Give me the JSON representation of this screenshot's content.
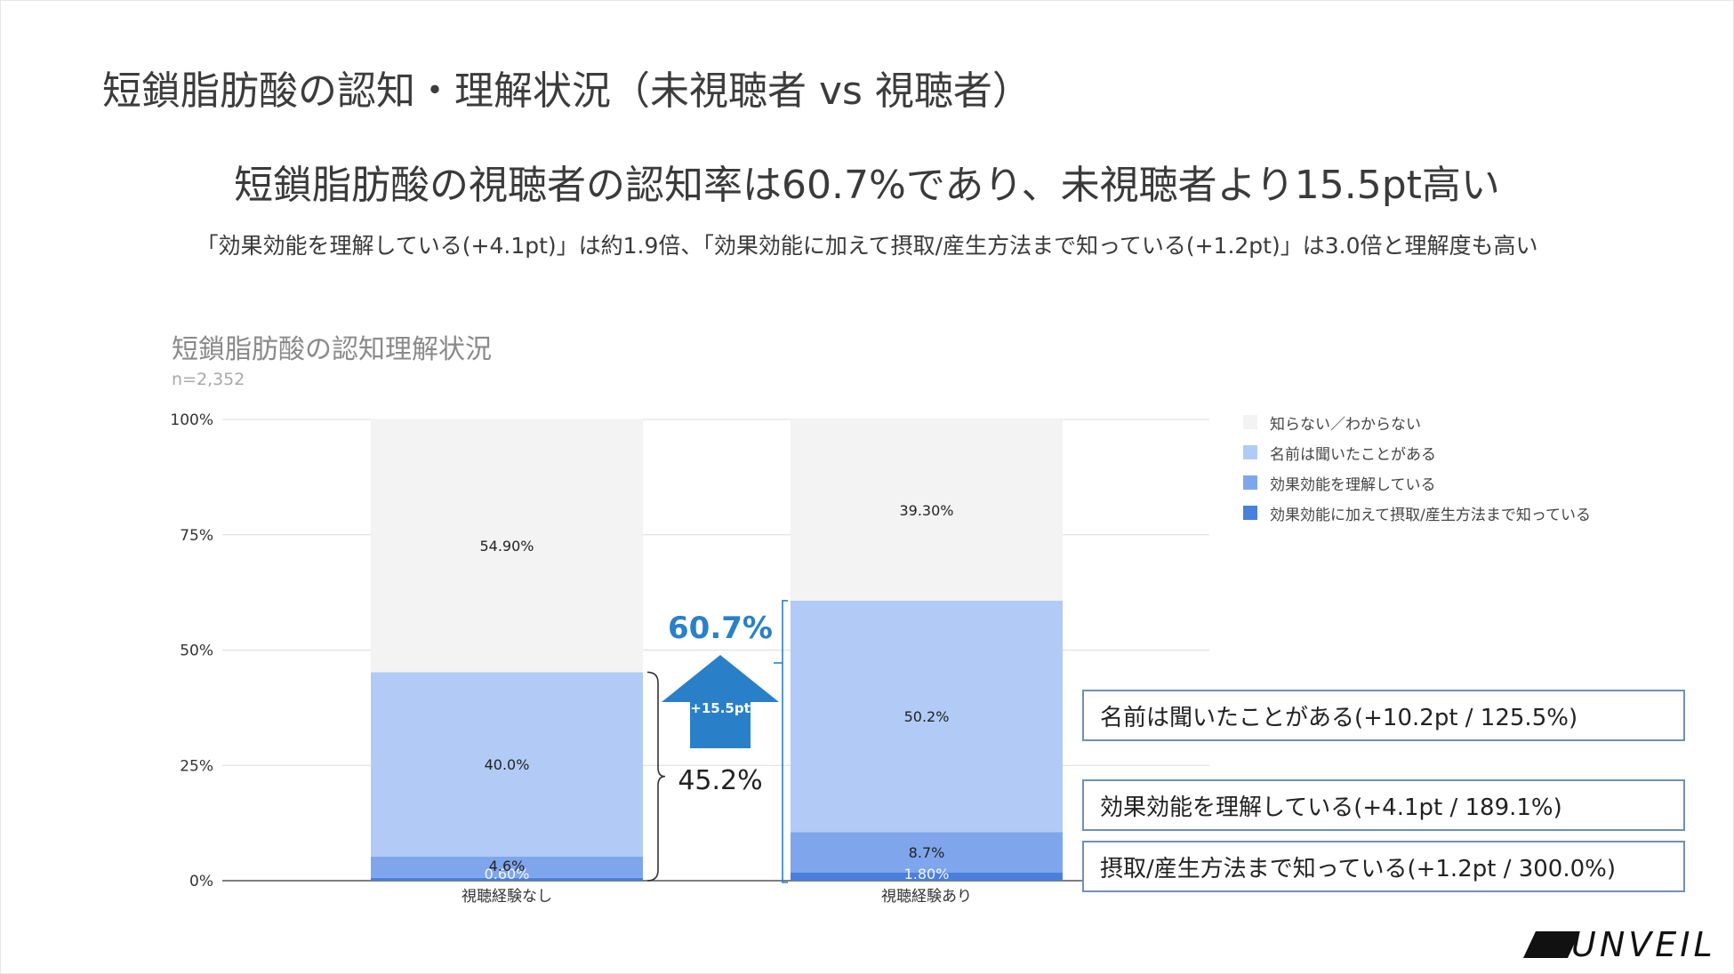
{
  "page": {
    "title": "短鎖脂肪酸の認知・理解状況（未視聴者 vs 視聴者）",
    "headline": "短鎖脂肪酸の視聴者の認知率は60.7%であり、未視聴者より15.5pt高い",
    "subline": "「効果効能を理解している(+4.1pt)」は約1.9倍、「効果効能に加えて摂取/産生方法まで知っている(+1.2pt)」は3.0倍と理解度も高い"
  },
  "chart_data": {
    "type": "bar",
    "stacked": true,
    "title": "短鎖脂肪酸の認知理解状況",
    "sample": "n=2,352",
    "categories": [
      "視聴経験なし",
      "視聴経験あり"
    ],
    "yticks": [
      "0%",
      "25%",
      "50%",
      "75%",
      "100%"
    ],
    "ylim": [
      0,
      100
    ],
    "grid": true,
    "legend_position": "right",
    "series": [
      {
        "name": "効果効能に加えて摂取/産生方法まで知っている",
        "values": [
          0.6,
          1.8
        ],
        "labels": [
          "0.60%",
          "1.80%"
        ],
        "color": "#4a7fdc"
      },
      {
        "name": "効果効能を理解している",
        "values": [
          4.6,
          8.7
        ],
        "labels": [
          "4.6%",
          "8.7%"
        ],
        "color": "#7fa6ec"
      },
      {
        "name": "名前は聞いたことがある",
        "values": [
          40.0,
          50.2
        ],
        "labels": [
          "40.0%",
          "50.2%"
        ],
        "color": "#b1cbf6"
      },
      {
        "name": "知らない／わからない",
        "values": [
          54.9,
          39.3
        ],
        "labels": [
          "54.90%",
          "39.30%"
        ],
        "color": "#f3f3f3"
      }
    ],
    "legend_order": [
      "知らない／わからない",
      "名前は聞いたことがある",
      "効果効能を理解している",
      "効果効能に加えて摂取/産生方法まで知っている"
    ],
    "annotations": {
      "aware_without": 45.2,
      "aware_without_label": "45.2%",
      "aware_with": 60.7,
      "aware_with_label": "60.7%",
      "diff_label": "+15.5pt",
      "arrow_color": "#2a80c8"
    }
  },
  "annotation_boxes": [
    {
      "text": "名前は聞いたことがある(+10.2pt / 125.5%)"
    },
    {
      "text": "効果効能を理解している(+4.1pt / 189.1%)"
    },
    {
      "text": "摂取/産生方法まで知っている(+1.2pt / 300.0%)"
    }
  ],
  "logo": {
    "text": "UNVEIL"
  }
}
